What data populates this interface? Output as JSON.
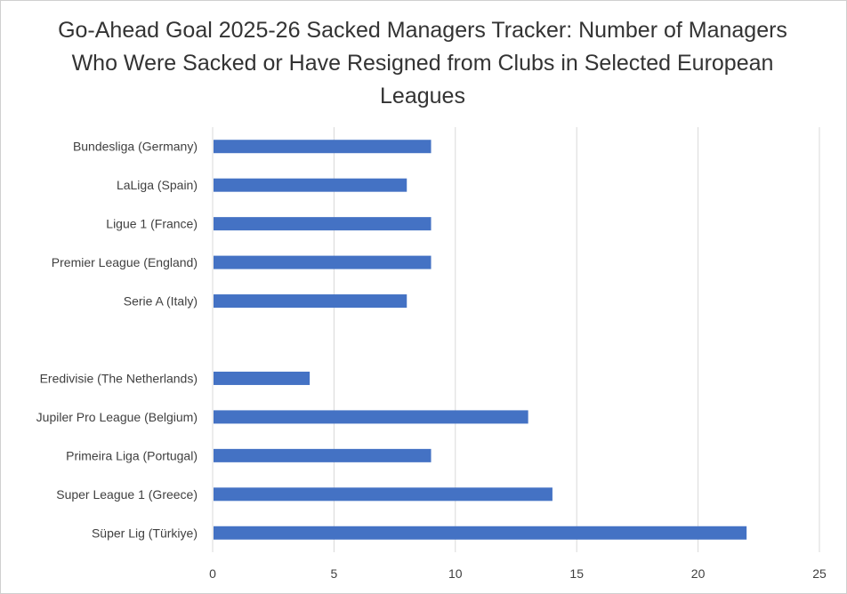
{
  "chart_data": {
    "type": "bar",
    "orientation": "horizontal",
    "title": "Go-Ahead Goal 2025-26 Sacked Managers Tracker: Number of Managers Who Were Sacked or Have Resigned from Clubs in Selected European Leagues",
    "categories": [
      "Bundesliga (Germany)",
      "LaLiga (Spain)",
      "Ligue 1 (France)",
      "Premier League (England)",
      "Serie A (Italy)",
      "",
      "Eredivisie (The Netherlands)",
      "Jupiler Pro League (Belgium)",
      "Primeira Liga (Portugal)",
      "Super League 1 (Greece)",
      "Süper Lig (Türkiye)"
    ],
    "values": [
      9,
      8,
      9,
      9,
      8,
      null,
      4,
      13,
      9,
      14,
      22
    ],
    "xlim": [
      0,
      25
    ],
    "xticks": [
      0,
      5,
      10,
      15,
      20,
      25
    ],
    "xlabel": "",
    "ylabel": "",
    "grid": "vertical",
    "legend": "none",
    "bar_color": "#4472C4",
    "grid_color": "#d9d9d9"
  }
}
